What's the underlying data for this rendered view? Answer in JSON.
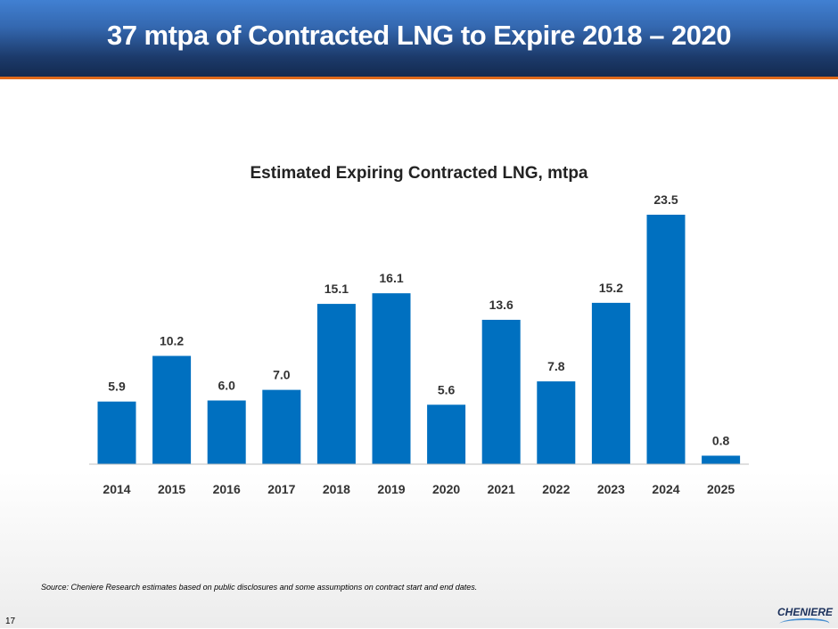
{
  "header": {
    "title": "37 mtpa of Contracted LNG to Expire 2018 – 2020"
  },
  "chart_data": {
    "type": "bar",
    "title": "Estimated Expiring Contracted LNG, mtpa",
    "categories": [
      "2014",
      "2015",
      "2016",
      "2017",
      "2018",
      "2019",
      "2020",
      "2021",
      "2022",
      "2023",
      "2024",
      "2025"
    ],
    "values": [
      5.9,
      10.2,
      6.0,
      7.0,
      15.1,
      16.1,
      5.6,
      13.6,
      7.8,
      15.2,
      23.5,
      0.8
    ],
    "labels": [
      "5.9",
      "10.2",
      "6.0",
      "7.0",
      "15.1",
      "16.1",
      "5.6",
      "13.6",
      "7.8",
      "15.2",
      "23.5",
      "0.8"
    ],
    "xlabel": "",
    "ylabel": "",
    "ylim": [
      0,
      23.5
    ],
    "grid": false,
    "legend": "none",
    "color": "#0070c0"
  },
  "footer": {
    "source": "Source: Cheniere Research estimates based on public disclosures and some assumptions on contract start and end  dates.",
    "page": "17",
    "logo": "CHENIERE"
  }
}
